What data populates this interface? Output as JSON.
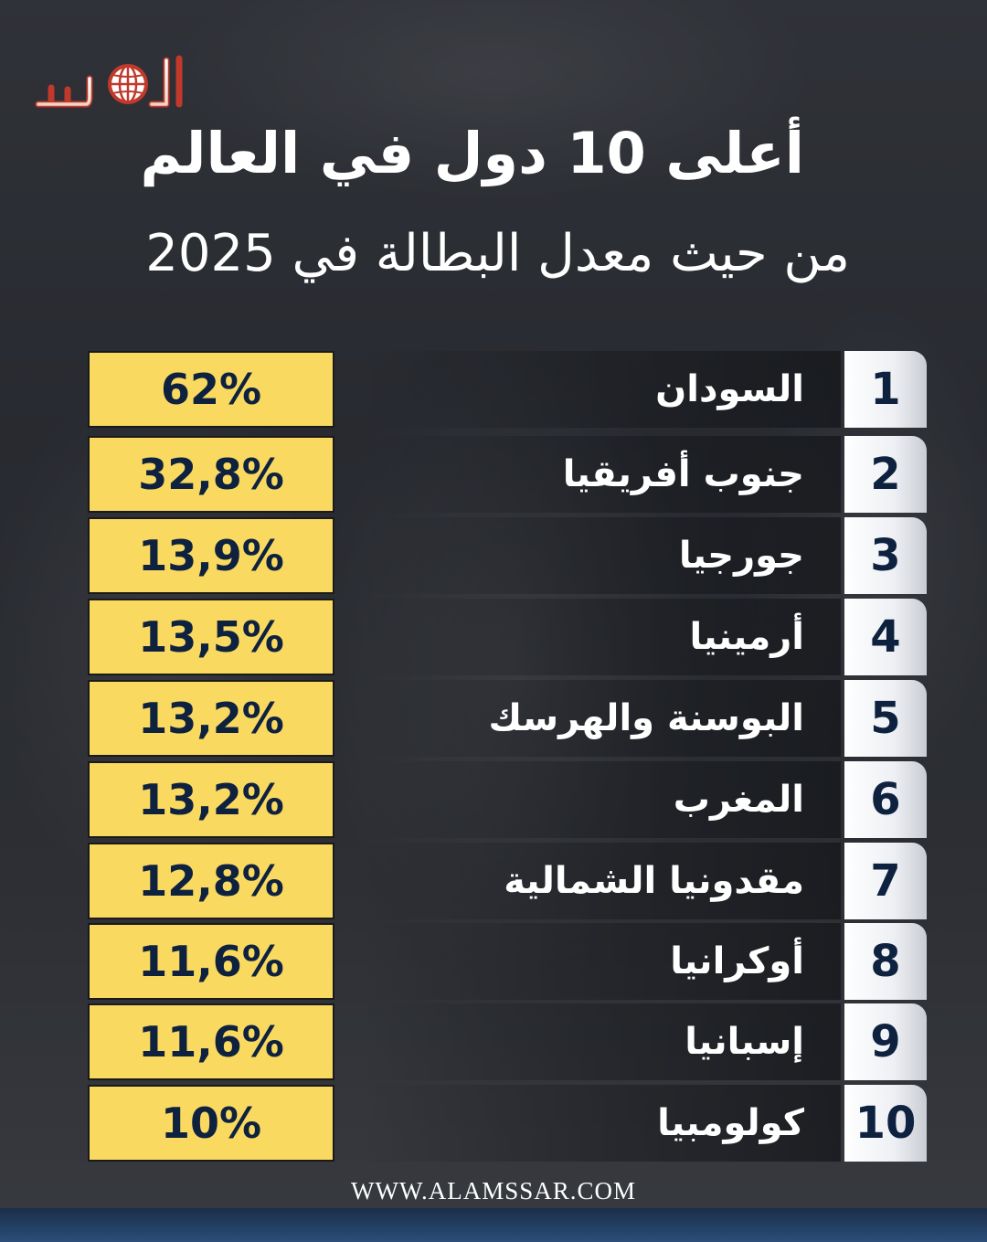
{
  "header": {
    "logo_text": "الأمصار",
    "title": "أعلى 10 دول في العالم",
    "subtitle": "من حيث معدل البطالة في 2025"
  },
  "ranking": [
    {
      "rank": "1",
      "country": "السودان",
      "value": "62%"
    },
    {
      "rank": "2",
      "country": "جنوب أفريقيا",
      "value": "32,8%"
    },
    {
      "rank": "3",
      "country": "جورجيا",
      "value": "13,9%"
    },
    {
      "rank": "4",
      "country": "أرمينيا",
      "value": "13,5%"
    },
    {
      "rank": "5",
      "country": "البوسنة والهرسك",
      "value": "13,2%"
    },
    {
      "rank": "6",
      "country": "المغرب",
      "value": "13,2%"
    },
    {
      "rank": "7",
      "country": "مقدونيا الشمالية",
      "value": "12,8%"
    },
    {
      "rank": "8",
      "country": "أوكرانيا",
      "value": "11,6%"
    },
    {
      "rank": "9",
      "country": "إسبانيا",
      "value": "11,6%"
    },
    {
      "rank": "10",
      "country": "كولومبيا",
      "value": "10%"
    }
  ],
  "footer": {
    "website": "WWW.ALAMSSAR.COM"
  },
  "colors": {
    "value_box": "#f9d960",
    "rank_text": "#0e2240",
    "bottom_bar": "#2b4e7a"
  }
}
